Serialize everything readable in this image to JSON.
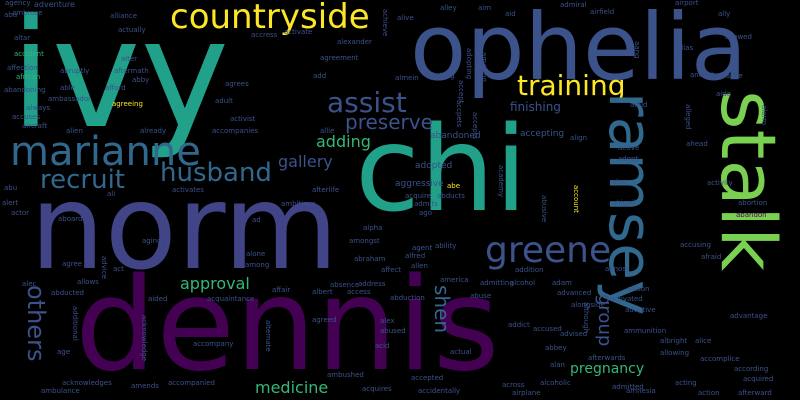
{
  "background": "#000000",
  "words": [
    {
      "text": "ivy",
      "color": "#21a08a"
    },
    {
      "text": "ophelia",
      "color": "#3b528b"
    },
    {
      "text": "chi",
      "color": "#21a08a"
    },
    {
      "text": "norm",
      "color": "#414487"
    },
    {
      "text": "dennis",
      "color": "#440154"
    },
    {
      "text": "countryside",
      "color": "#fde725"
    },
    {
      "text": "marianne",
      "color": "#31688e"
    },
    {
      "text": "training",
      "color": "#fde725"
    },
    {
      "text": "assist",
      "color": "#3b528b"
    },
    {
      "text": "recruit",
      "color": "#31688e"
    },
    {
      "text": "husband",
      "color": "#31688e"
    },
    {
      "text": "preserve",
      "color": "#3b528b"
    },
    {
      "text": "greene",
      "color": "#3b528b"
    },
    {
      "text": "ramsey",
      "color": "#31688e"
    },
    {
      "text": "stalk",
      "color": "#7ad151"
    },
    {
      "text": "adding",
      "color": "#35b779"
    },
    {
      "text": "gallery",
      "color": "#3b528b"
    },
    {
      "text": "approval",
      "color": "#35b779"
    },
    {
      "text": "others",
      "color": "#3b528b"
    },
    {
      "text": "shen",
      "color": "#31688e"
    },
    {
      "text": "group",
      "color": "#3b528b"
    },
    {
      "text": "medicine",
      "color": "#35b779"
    },
    {
      "text": "pregnancy",
      "color": "#35b779"
    },
    {
      "text": "finishing",
      "color": "#3b528b"
    },
    {
      "text": "accepting",
      "color": "#3b528b"
    },
    {
      "text": "abandoned",
      "color": "#3b528b"
    },
    {
      "text": "adopted",
      "color": "#3b528b"
    },
    {
      "text": "aggressive",
      "color": "#3b528b"
    },
    {
      "text": "agency",
      "color": "#3b528b"
    },
    {
      "text": "adventure",
      "color": "#3b528b"
    },
    {
      "text": "ambrose",
      "color": "#3b528b"
    },
    {
      "text": "altar",
      "color": "#3b528b"
    },
    {
      "text": "accident",
      "color": "#35b779"
    },
    {
      "text": "affection",
      "color": "#3b528b"
    },
    {
      "text": "african",
      "color": "#35b779"
    },
    {
      "text": "able",
      "color": "#3b528b"
    },
    {
      "text": "abandoning",
      "color": "#3b528b"
    },
    {
      "text": "always",
      "color": "#3b528b"
    },
    {
      "text": "accuses",
      "color": "#3b528b"
    },
    {
      "text": "aircraft",
      "color": "#3b528b"
    },
    {
      "text": "alliance",
      "color": "#3b528b"
    },
    {
      "text": "actually",
      "color": "#3b528b"
    },
    {
      "text": "abruptly",
      "color": "#3b528b"
    },
    {
      "text": "aftermath",
      "color": "#3b528b"
    },
    {
      "text": "afford",
      "color": "#3b528b"
    },
    {
      "text": "alter",
      "color": "#3b528b"
    },
    {
      "text": "abby",
      "color": "#3b528b"
    },
    {
      "text": "agreeing",
      "color": "#fde725"
    },
    {
      "text": "ambassador",
      "color": "#3b528b"
    },
    {
      "text": "alien",
      "color": "#3b528b"
    },
    {
      "text": "already",
      "color": "#3b528b"
    },
    {
      "text": "accompanies",
      "color": "#3b528b"
    },
    {
      "text": "adult",
      "color": "#3b528b"
    },
    {
      "text": "agrees",
      "color": "#3b528b"
    },
    {
      "text": "activist",
      "color": "#3b528b"
    },
    {
      "text": "activate",
      "color": "#3b528b"
    },
    {
      "text": "alexander",
      "color": "#3b528b"
    },
    {
      "text": "add",
      "color": "#3b528b"
    },
    {
      "text": "almein",
      "color": "#3b528b"
    },
    {
      "text": "along",
      "color": "#3b528b"
    },
    {
      "text": "allie",
      "color": "#3b528b"
    },
    {
      "text": "accept",
      "color": "#3b528b"
    },
    {
      "text": "alive",
      "color": "#3b528b"
    },
    {
      "text": "alley",
      "color": "#3b528b"
    },
    {
      "text": "aim",
      "color": "#3b528b"
    },
    {
      "text": "aid",
      "color": "#3b528b"
    },
    {
      "text": "admiral",
      "color": "#3b528b"
    },
    {
      "text": "airfield",
      "color": "#3b528b"
    },
    {
      "text": "airport",
      "color": "#3b528b"
    },
    {
      "text": "ally",
      "color": "#3b528b"
    },
    {
      "text": "allowed",
      "color": "#3b528b"
    },
    {
      "text": "alias",
      "color": "#3b528b"
    },
    {
      "text": "advance",
      "color": "#3b528b"
    },
    {
      "text": "anoush",
      "color": "#3b528b"
    },
    {
      "text": "aide",
      "color": "#3b528b"
    },
    {
      "text": "amid",
      "color": "#3b528b"
    },
    {
      "text": "ahead",
      "color": "#3b528b"
    },
    {
      "text": "active",
      "color": "#3b528b"
    },
    {
      "text": "adopt",
      "color": "#3b528b"
    },
    {
      "text": "align",
      "color": "#3b528b"
    },
    {
      "text": "also",
      "color": "#3b528b"
    },
    {
      "text": "activity",
      "color": "#3b528b"
    },
    {
      "text": "abigail",
      "color": "#3b528b"
    },
    {
      "text": "abortion",
      "color": "#3b528b"
    },
    {
      "text": "abandon",
      "color": "#440154"
    },
    {
      "text": "afraid",
      "color": "#3b528b"
    },
    {
      "text": "accusing",
      "color": "#3b528b"
    },
    {
      "text": "almost",
      "color": "#3b528b"
    },
    {
      "text": "allison",
      "color": "#3b528b"
    },
    {
      "text": "activated",
      "color": "#3b528b"
    },
    {
      "text": "adoptive",
      "color": "#3b528b"
    },
    {
      "text": "advantage",
      "color": "#3b528b"
    },
    {
      "text": "ammunition",
      "color": "#3b528b"
    },
    {
      "text": "albright",
      "color": "#3b528b"
    },
    {
      "text": "alice",
      "color": "#3b528b"
    },
    {
      "text": "allowing",
      "color": "#3b528b"
    },
    {
      "text": "accomplice",
      "color": "#3b528b"
    },
    {
      "text": "according",
      "color": "#3b528b"
    },
    {
      "text": "acquired",
      "color": "#3b528b"
    },
    {
      "text": "acting",
      "color": "#3b528b"
    },
    {
      "text": "action",
      "color": "#3b528b"
    },
    {
      "text": "afterward",
      "color": "#3b528b"
    },
    {
      "text": "admitted",
      "color": "#3b528b"
    },
    {
      "text": "amnesia",
      "color": "#3b528b"
    },
    {
      "text": "afterwards",
      "color": "#3b528b"
    },
    {
      "text": "advised",
      "color": "#3b528b"
    },
    {
      "text": "abbey",
      "color": "#3b528b"
    },
    {
      "text": "alan",
      "color": "#3b528b"
    },
    {
      "text": "accused",
      "color": "#3b528b"
    },
    {
      "text": "addict",
      "color": "#3b528b"
    },
    {
      "text": "alongside",
      "color": "#3b528b"
    },
    {
      "text": "advanced",
      "color": "#3b528b"
    },
    {
      "text": "adam",
      "color": "#3b528b"
    },
    {
      "text": "alcohol",
      "color": "#3b528b"
    },
    {
      "text": "addition",
      "color": "#3b528b"
    },
    {
      "text": "abuse",
      "color": "#3b528b"
    },
    {
      "text": "admitting",
      "color": "#3b528b"
    },
    {
      "text": "america",
      "color": "#3b528b"
    },
    {
      "text": "alcoholic",
      "color": "#3b528b"
    },
    {
      "text": "airplane",
      "color": "#3b528b"
    },
    {
      "text": "across",
      "color": "#3b528b"
    },
    {
      "text": "accidentally",
      "color": "#3b528b"
    },
    {
      "text": "accepted",
      "color": "#3b528b"
    },
    {
      "text": "actual",
      "color": "#3b528b"
    },
    {
      "text": "acid",
      "color": "#3b528b"
    },
    {
      "text": "abused",
      "color": "#3b528b"
    },
    {
      "text": "alex",
      "color": "#3b528b"
    },
    {
      "text": "abduction",
      "color": "#3b528b"
    },
    {
      "text": "address",
      "color": "#3b528b"
    },
    {
      "text": "access",
      "color": "#3b528b"
    },
    {
      "text": "absence",
      "color": "#3b528b"
    },
    {
      "text": "albert",
      "color": "#3b528b"
    },
    {
      "text": "affect",
      "color": "#3b528b"
    },
    {
      "text": "allen",
      "color": "#3b528b"
    },
    {
      "text": "alfred",
      "color": "#3b528b"
    },
    {
      "text": "agent",
      "color": "#3b528b"
    },
    {
      "text": "ability",
      "color": "#3b528b"
    },
    {
      "text": "abraham",
      "color": "#3b528b"
    },
    {
      "text": "amongst",
      "color": "#3b528b"
    },
    {
      "text": "alpha",
      "color": "#3b528b"
    },
    {
      "text": "abe",
      "color": "#fde725"
    },
    {
      "text": "abducts",
      "color": "#3b528b"
    },
    {
      "text": "admits",
      "color": "#3b528b"
    },
    {
      "text": "acquire",
      "color": "#3b528b"
    },
    {
      "text": "ago",
      "color": "#3b528b"
    },
    {
      "text": "afterlife",
      "color": "#3b528b"
    },
    {
      "text": "ambitious",
      "color": "#3b528b"
    },
    {
      "text": "activates",
      "color": "#3b528b"
    },
    {
      "text": "ali",
      "color": "#3b528b"
    },
    {
      "text": "abu",
      "color": "#3b528b"
    },
    {
      "text": "actor",
      "color": "#3b528b"
    },
    {
      "text": "aboard",
      "color": "#3b528b"
    },
    {
      "text": "ad",
      "color": "#3b528b"
    },
    {
      "text": "aging",
      "color": "#3b528b"
    },
    {
      "text": "alone",
      "color": "#3b528b"
    },
    {
      "text": "among",
      "color": "#3b528b"
    },
    {
      "text": "act",
      "color": "#3b528b"
    },
    {
      "text": "agree",
      "color": "#3b528b"
    },
    {
      "text": "alec",
      "color": "#3b528b"
    },
    {
      "text": "allows",
      "color": "#3b528b"
    },
    {
      "text": "abducted",
      "color": "#3b528b"
    },
    {
      "text": "aided",
      "color": "#3b528b"
    },
    {
      "text": "acquaintance",
      "color": "#3b528b"
    },
    {
      "text": "affair",
      "color": "#3b528b"
    },
    {
      "text": "age",
      "color": "#3b528b"
    },
    {
      "text": "accompany",
      "color": "#3b528b"
    },
    {
      "text": "acknowledges",
      "color": "#3b528b"
    },
    {
      "text": "ambulance",
      "color": "#3b528b"
    },
    {
      "text": "amends",
      "color": "#3b528b"
    },
    {
      "text": "accompanied",
      "color": "#3b528b"
    },
    {
      "text": "ambushed",
      "color": "#3b528b"
    },
    {
      "text": "acquires",
      "color": "#3b528b"
    },
    {
      "text": "agreed",
      "color": "#3b528b"
    },
    {
      "text": "achieve",
      "color": "#3b528b"
    },
    {
      "text": "agreement",
      "color": "#3b528b"
    },
    {
      "text": "accpets",
      "color": "#3b528b"
    },
    {
      "text": "academy",
      "color": "#3b528b"
    },
    {
      "text": "abusive",
      "color": "#3b528b"
    },
    {
      "text": "account",
      "color": "#fde725"
    },
    {
      "text": "alert",
      "color": "#3b528b"
    },
    {
      "text": "abu",
      "color": "#3b528b"
    },
    {
      "text": "additional",
      "color": "#3b528b"
    },
    {
      "text": "acknowledge",
      "color": "#3b528b"
    },
    {
      "text": "advice",
      "color": "#3b528b"
    },
    {
      "text": "alternate",
      "color": "#3b528b"
    },
    {
      "text": "although",
      "color": "#3b528b"
    },
    {
      "text": "alarm",
      "color": "#3b528b"
    },
    {
      "text": "aang",
      "color": "#3b528b"
    },
    {
      "text": "alleged",
      "color": "#3b528b"
    },
    {
      "text": "amazing",
      "color": "#3b528b"
    },
    {
      "text": "adopting",
      "color": "#3b528b"
    },
    {
      "text": "accress",
      "color": "#3b528b"
    },
    {
      "text": "accepts",
      "color": "#3b528b"
    }
  ]
}
